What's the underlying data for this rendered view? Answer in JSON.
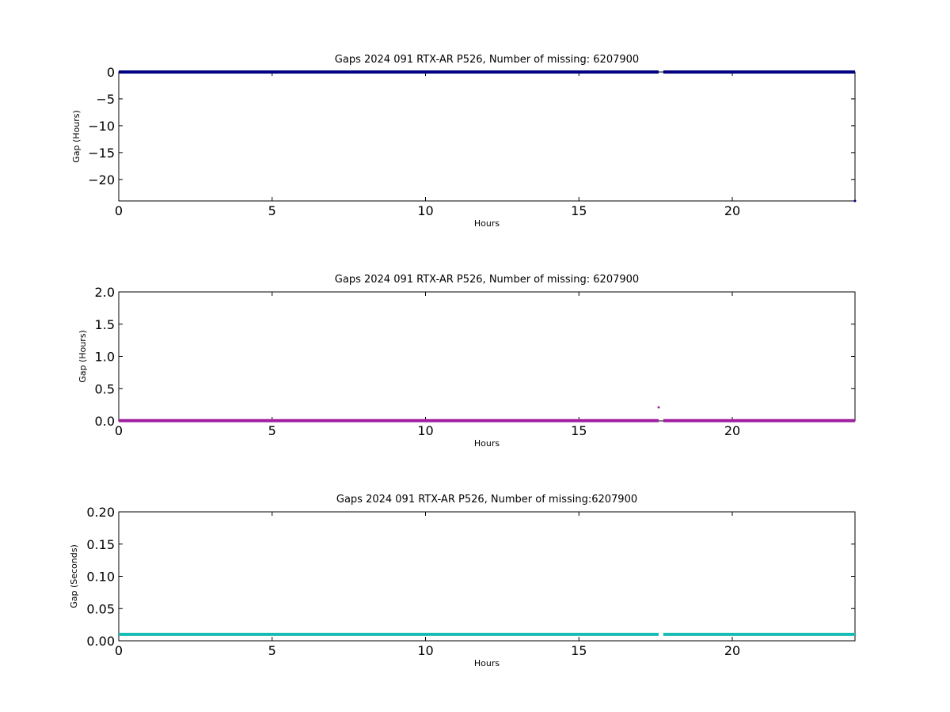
{
  "chart_data": [
    {
      "type": "scatter",
      "title": "Gaps 2024 091 RTX-AR  P526, Number of missing: 6207900",
      "xlabel": "Hours",
      "ylabel": "Gap (Hours)",
      "xlim": [
        0,
        24
      ],
      "ylim": [
        -24,
        0
      ],
      "xticks": [
        "0",
        "5",
        "10",
        "15",
        "20"
      ],
      "yticks": [
        "0",
        "−5",
        "−10",
        "−15",
        "−20"
      ],
      "grid": false,
      "series": [
        {
          "color": "#000080",
          "segments": [
            [
              0,
              17.6,
              0
            ],
            [
              17.75,
              24,
              0
            ]
          ],
          "points": [
            [
              24,
              -24
            ]
          ]
        }
      ]
    },
    {
      "type": "scatter",
      "title": "Gaps 2024 091 RTX-AR  P526, Number of missing: 6207900",
      "xlabel": "Hours",
      "ylabel": "Gap (Hours)",
      "xlim": [
        0,
        24
      ],
      "ylim": [
        0,
        2
      ],
      "xticks": [
        "0",
        "5",
        "10",
        "15",
        "20"
      ],
      "yticks": [
        "0.0",
        "0.5",
        "1.0",
        "1.5",
        "2.0"
      ],
      "grid": false,
      "series": [
        {
          "color": "#a020a0",
          "segments": [
            [
              0,
              17.6,
              0.003
            ],
            [
              17.75,
              24,
              0.003
            ]
          ],
          "points": [
            [
              17.6,
              0.21
            ]
          ]
        }
      ]
    },
    {
      "type": "scatter",
      "title": "Gaps 2024 091 RTX-AR  P526, Number of missing:6207900",
      "xlabel": "Hours",
      "ylabel": "Gap (Seconds)",
      "xlim": [
        0,
        24
      ],
      "ylim": [
        0,
        0.2
      ],
      "xticks": [
        "0",
        "5",
        "10",
        "15",
        "20"
      ],
      "yticks": [
        "0.00",
        "0.05",
        "0.10",
        "0.15",
        "0.20"
      ],
      "grid": false,
      "series": [
        {
          "color": "#17bbb5",
          "segments": [
            [
              0,
              17.6,
              0.01
            ],
            [
              17.75,
              24,
              0.01
            ]
          ],
          "points": []
        }
      ]
    }
  ]
}
